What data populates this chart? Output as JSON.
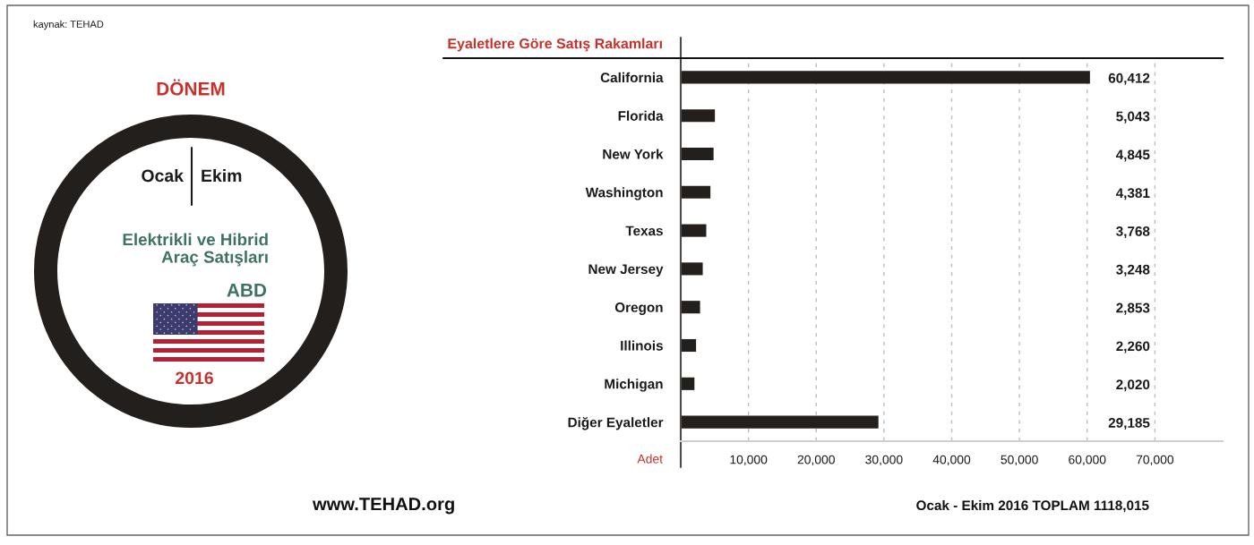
{
  "chart_data": {
    "type": "bar",
    "orientation": "horizontal",
    "title": "Eyaletlere Göre Satış Rakamları",
    "xlabel": "Adet",
    "categories": [
      "California",
      "Florida",
      "New York",
      "Washington",
      "Texas",
      "New Jersey",
      "Oregon",
      "Illinois",
      "Michigan",
      "Diğer Eyaletler"
    ],
    "values": [
      60412,
      5043,
      4845,
      4381,
      3768,
      3248,
      2853,
      2260,
      2020,
      29185
    ],
    "value_labels": [
      "60,412",
      "5,043",
      "4,845",
      "4,381",
      "3,768",
      "3,248",
      "2,853",
      "2,260",
      "2,020",
      "29,185"
    ],
    "color": "#221f1c",
    "xlim": [
      0,
      80000
    ],
    "xticks": [
      {
        "value": 10000,
        "label": "10,000"
      },
      {
        "value": 20000,
        "label": "20,000"
      },
      {
        "value": 30000,
        "label": "30,000"
      },
      {
        "value": 40000,
        "label": "40,000"
      },
      {
        "value": 50000,
        "label": "50,000"
      },
      {
        "value": 60000,
        "label": "60,000"
      },
      {
        "value": 70000,
        "label": "70,000"
      }
    ],
    "grid": "x",
    "annotations": [
      "kaynak: TEHAD",
      "DÖNEM",
      "Ocak",
      "Ekim",
      "Elektrikli ve Hibrid\nAraç Satışları",
      "ABD",
      "2016",
      "www.TEHAD.org",
      "Ocak - Ekim 2016 TOPLAM 1118,015"
    ]
  }
}
